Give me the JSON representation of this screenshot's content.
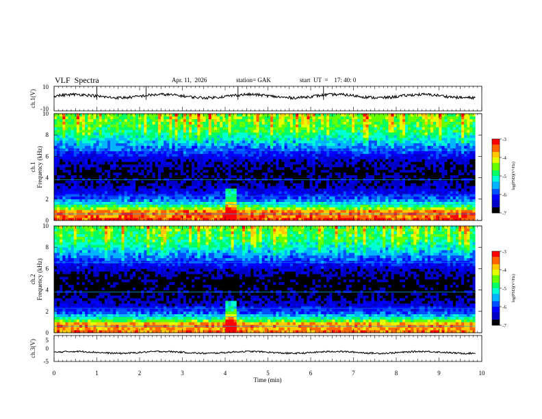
{
  "header": {
    "title": "VLF  Spectra",
    "date": "Apr. 11,  2026",
    "station": "station= GAK",
    "start_ut": "start  UT  =    17: 40: 0"
  },
  "chart_data": {
    "type": "spectrogram",
    "time_axis": {
      "label": "Time  (min)",
      "range": [
        0,
        10
      ],
      "ticks": [
        "0",
        "1",
        "2",
        "3",
        "4",
        "5",
        "6",
        "7",
        "8",
        "9",
        "10"
      ],
      "data_end_min": 9.85
    },
    "panels": [
      {
        "id": "ch1-waveform",
        "type": "line",
        "ylabel": "ch.1(V)",
        "ylim": [
          -10,
          10
        ],
        "ytick_labels": [
          "10",
          "-10"
        ],
        "approx_level_v": 2,
        "events_min": [
          1.0,
          2.15,
          4.3,
          6.3
        ]
      },
      {
        "id": "ch1-spectrogram",
        "type": "heatmap",
        "ylabel_channel": "ch.1",
        "ylabel": "Frequency (kHz)",
        "ylim": [
          0,
          10
        ],
        "ytick_labels": [
          "0",
          "2",
          "4",
          "6",
          "8",
          "10"
        ],
        "burst_time_min": 4.12,
        "colorbar": {
          "label": "log(PSD)(V²/Hz)",
          "range": [
            -7,
            -3
          ],
          "tick_labels": [
            "-3",
            "-4",
            "-5",
            "-6",
            "-7"
          ]
        }
      },
      {
        "id": "ch2-spectrogram",
        "type": "heatmap",
        "ylabel_channel": "ch.2",
        "ylabel": "Frequency (kHz)",
        "ylim": [
          0,
          10
        ],
        "ytick_labels": [
          "0",
          "2",
          "4",
          "6",
          "8",
          "10"
        ],
        "burst_time_min": 4.12,
        "colorbar": {
          "label": "log(PSD)(V²/Hz)",
          "range": [
            -7,
            -3
          ],
          "tick_labels": [
            "-3",
            "-4",
            "-5",
            "-6",
            "-7"
          ]
        }
      },
      {
        "id": "ch3-waveform",
        "type": "line",
        "ylabel": "ch.3(V)",
        "ylim": [
          -5,
          5
        ],
        "ytick_labels": [
          "5",
          "0",
          "-5"
        ],
        "approx_level_v": -1.5
      }
    ],
    "psd_profile_khz_to_log": [
      [
        0.0,
        -3.2
      ],
      [
        0.3,
        -3.6
      ],
      [
        0.8,
        -3.4
      ],
      [
        1.2,
        -4.6
      ],
      [
        1.8,
        -5.6
      ],
      [
        2.5,
        -6.2
      ],
      [
        3.5,
        -6.6
      ],
      [
        4.5,
        -6.8
      ],
      [
        5.5,
        -6.5
      ],
      [
        6.5,
        -6.0
      ],
      [
        7.5,
        -5.4
      ],
      [
        8.5,
        -4.9
      ],
      [
        10.0,
        -4.6
      ]
    ],
    "colors": {
      "colormap": [
        "#000000",
        "#0000c8",
        "#0000ff",
        "#0050ff",
        "#00b4ff",
        "#00ffd2",
        "#00ff64",
        "#64ff00",
        "#e6ff00",
        "#ffc800",
        "#ff6400",
        "#ff0000",
        "#ffffff"
      ],
      "trace": "#000000",
      "axis": "#000000"
    }
  }
}
